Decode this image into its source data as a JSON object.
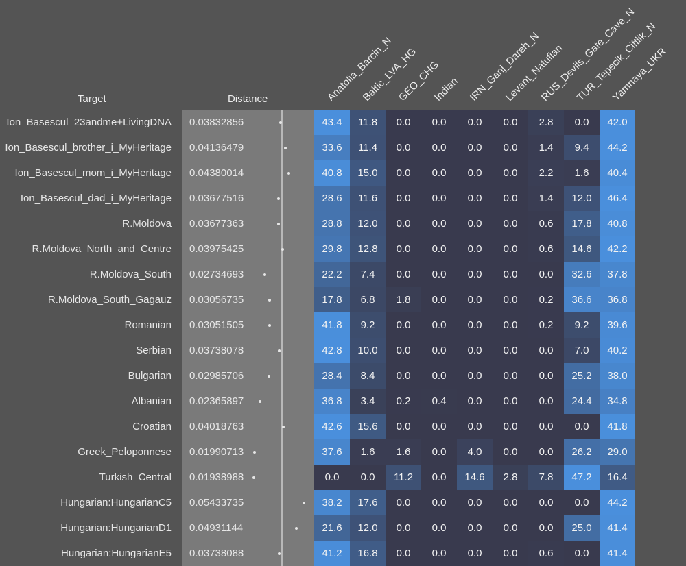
{
  "chart_data": {
    "type": "heatmap",
    "headers": {
      "target": "Target",
      "distance": "Distance"
    },
    "columns": [
      "Anatolia_Barcin_N",
      "Baltic_LVA_HG",
      "GEO_CHG",
      "Indian",
      "IRN_Ganj_Dareh_N",
      "Levant_Natufian",
      "RUS_Devils_Gate_Cave_N",
      "TUR_Tepecik_Ciftlik_N",
      "Yamnaya_UKR"
    ],
    "rows": [
      {
        "target": "Ion_Basescul_23andme+LivingDNA",
        "distance": "0.03832856",
        "values": [
          43.4,
          11.8,
          0.0,
          0.0,
          0.0,
          0.0,
          2.8,
          0.0,
          42.0
        ]
      },
      {
        "target": "Ion_Basescul_brother_i_MyHeritage",
        "distance": "0.04136479",
        "values": [
          33.6,
          11.4,
          0.0,
          0.0,
          0.0,
          0.0,
          1.4,
          9.4,
          44.2
        ]
      },
      {
        "target": "Ion_Basescul_mom_i_MyHeritage",
        "distance": "0.04380014",
        "values": [
          40.8,
          15.0,
          0.0,
          0.0,
          0.0,
          0.0,
          2.2,
          1.6,
          40.4
        ]
      },
      {
        "target": "Ion_Basescul_dad_i_MyHeritage",
        "distance": "0.03677516",
        "values": [
          28.6,
          11.6,
          0.0,
          0.0,
          0.0,
          0.0,
          1.4,
          12.0,
          46.4
        ]
      },
      {
        "target": "R.Moldova",
        "distance": "0.03677363",
        "values": [
          28.8,
          12.0,
          0.0,
          0.0,
          0.0,
          0.0,
          0.6,
          17.8,
          40.8
        ]
      },
      {
        "target": "R.Moldova_North_and_Centre",
        "distance": "0.03975425",
        "values": [
          29.8,
          12.8,
          0.0,
          0.0,
          0.0,
          0.0,
          0.6,
          14.6,
          42.2
        ]
      },
      {
        "target": "R.Moldova_South",
        "distance": "0.02734693",
        "values": [
          22.2,
          7.4,
          0.0,
          0.0,
          0.0,
          0.0,
          0.0,
          32.6,
          37.8
        ]
      },
      {
        "target": "R.Moldova_South_Gagauz",
        "distance": "0.03056735",
        "values": [
          17.8,
          6.8,
          1.8,
          0.0,
          0.0,
          0.0,
          0.2,
          36.6,
          36.8
        ]
      },
      {
        "target": "Romanian",
        "distance": "0.03051505",
        "values": [
          41.8,
          9.2,
          0.0,
          0.0,
          0.0,
          0.0,
          0.2,
          9.2,
          39.6
        ]
      },
      {
        "target": "Serbian",
        "distance": "0.03738078",
        "values": [
          42.8,
          10.0,
          0.0,
          0.0,
          0.0,
          0.0,
          0.0,
          7.0,
          40.2
        ]
      },
      {
        "target": "Bulgarian",
        "distance": "0.02985706",
        "values": [
          28.4,
          8.4,
          0.0,
          0.0,
          0.0,
          0.0,
          0.0,
          25.2,
          38.0
        ]
      },
      {
        "target": "Albanian",
        "distance": "0.02365897",
        "values": [
          36.8,
          3.4,
          0.2,
          0.4,
          0.0,
          0.0,
          0.0,
          24.4,
          34.8
        ]
      },
      {
        "target": "Croatian",
        "distance": "0.04018763",
        "values": [
          42.6,
          15.6,
          0.0,
          0.0,
          0.0,
          0.0,
          0.0,
          0.0,
          41.8
        ]
      },
      {
        "target": "Greek_Peloponnese",
        "distance": "0.01990713",
        "values": [
          37.6,
          1.6,
          1.6,
          0.0,
          4.0,
          0.0,
          0.0,
          26.2,
          29.0
        ]
      },
      {
        "target": "Turkish_Central",
        "distance": "0.01938988",
        "values": [
          0.0,
          0.0,
          11.2,
          0.0,
          14.6,
          2.8,
          7.8,
          47.2,
          16.4
        ]
      },
      {
        "target": "Hungarian:HungarianC5",
        "distance": "0.05433735",
        "values": [
          38.2,
          17.6,
          0.0,
          0.0,
          0.0,
          0.0,
          0.0,
          0.0,
          44.2
        ]
      },
      {
        "target": "Hungarian:HungarianD1",
        "distance": "0.04931144",
        "values": [
          21.6,
          12.0,
          0.0,
          0.0,
          0.0,
          0.0,
          0.0,
          25.0,
          41.4
        ]
      },
      {
        "target": "Hungarian:HungarianE5",
        "distance": "0.03738088",
        "values": [
          41.2,
          16.8,
          0.0,
          0.0,
          0.0,
          0.0,
          0.6,
          0.0,
          41.4
        ]
      }
    ],
    "colors": {
      "low": "#393a4e",
      "high": "#4a8fdc",
      "background": "#545454",
      "distance_panel": "#7a7a7a"
    }
  }
}
